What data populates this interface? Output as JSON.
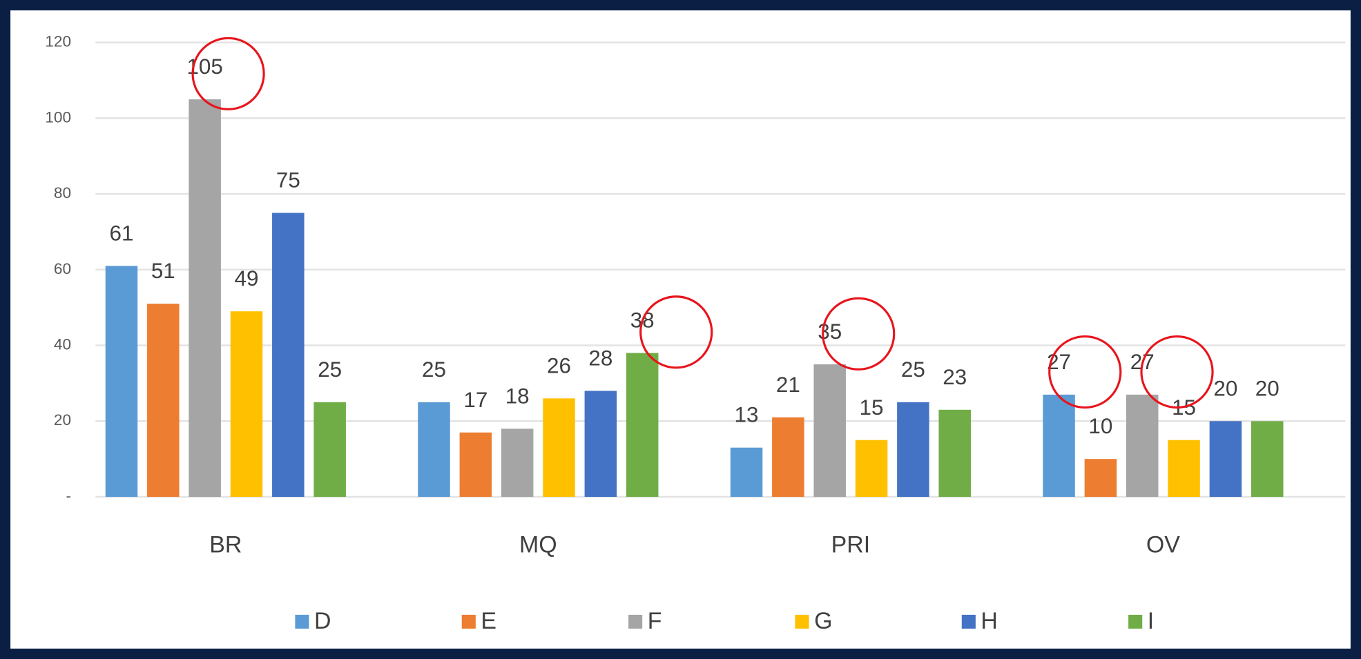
{
  "chart_data": {
    "type": "bar",
    "categories": [
      "BR",
      "MQ",
      "PRI",
      "OV"
    ],
    "series": [
      {
        "name": "D",
        "color": "#5b9bd5",
        "values": [
          61,
          25,
          13,
          27
        ]
      },
      {
        "name": "E",
        "color": "#ed7d31",
        "values": [
          51,
          17,
          21,
          10
        ]
      },
      {
        "name": "F",
        "color": "#a5a5a5",
        "values": [
          105,
          18,
          35,
          27
        ]
      },
      {
        "name": "G",
        "color": "#ffc000",
        "values": [
          49,
          26,
          15,
          15
        ]
      },
      {
        "name": "H",
        "color": "#4472c4",
        "values": [
          75,
          28,
          25,
          20
        ]
      },
      {
        "name": "I",
        "color": "#70ad47",
        "values": [
          25,
          38,
          23,
          20
        ]
      }
    ],
    "ylim": [
      0,
      120
    ],
    "yticks": [
      {
        "value": 0,
        "label": "-"
      },
      20,
      40,
      60,
      80,
      100,
      120
    ],
    "grid": true,
    "legend": "bottom"
  }
}
